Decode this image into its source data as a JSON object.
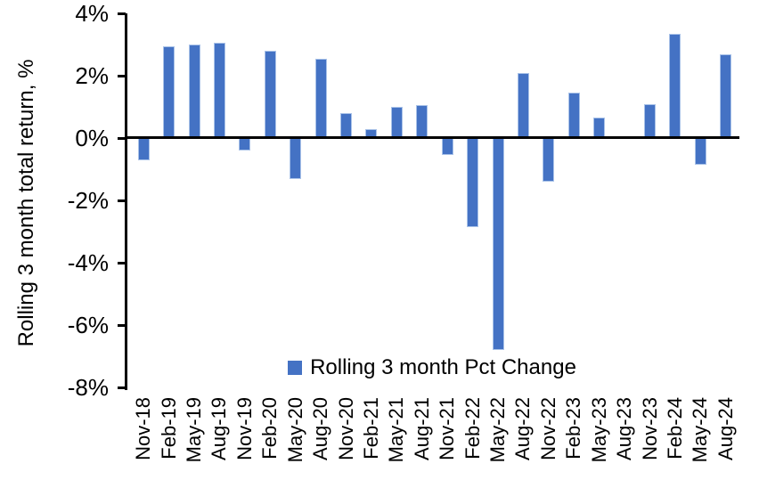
{
  "chart_data": {
    "type": "bar",
    "title": "",
    "xlabel": "",
    "ylabel": "Rolling 3 month total return, %",
    "legend": "Rolling 3 month Pct Change",
    "legend_position": "bottom-center",
    "grid": false,
    "ylim": [
      -8,
      4
    ],
    "ytick_step": 2,
    "yticks": [
      4,
      2,
      0,
      -2,
      -4,
      -6,
      -8
    ],
    "ytick_labels": [
      "4%",
      "2%",
      "0%",
      "-2%",
      "-4%",
      "-6%",
      "-8%"
    ],
    "categories": [
      "Nov-18",
      "Feb-19",
      "May-19",
      "Aug-19",
      "Nov-19",
      "Feb-20",
      "May-20",
      "Aug-20",
      "Nov-20",
      "Feb-21",
      "May-21",
      "Aug-21",
      "Nov-21",
      "Feb-22",
      "May-22",
      "Aug-22",
      "Nov-22",
      "Feb-23",
      "May-23",
      "Aug-23",
      "Nov-23",
      "Feb-24",
      "May-24",
      "Aug-24"
    ],
    "values": [
      -0.7,
      2.95,
      3.0,
      3.05,
      -0.4,
      2.8,
      -1.3,
      2.55,
      0.8,
      0.3,
      1.0,
      1.05,
      -0.55,
      -2.85,
      -6.8,
      2.1,
      -1.4,
      1.45,
      0.65,
      0.0,
      1.1,
      3.35,
      -0.85,
      2.7
    ],
    "bar_color": "#4472C4",
    "bar_border_color": "#a9c2e8",
    "axis_color": "#000000"
  }
}
